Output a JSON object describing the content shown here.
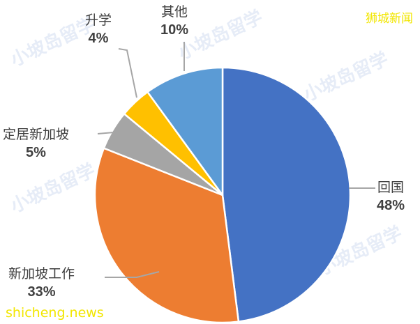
{
  "chart_data": {
    "type": "pie",
    "start_angle": "12 o'clock",
    "direction": "clockwise",
    "slices": [
      {
        "label": "回国",
        "value": 48,
        "pct_label": "48%",
        "color": "#4472C4"
      },
      {
        "label": "新加坡工作",
        "value": 33,
        "pct_label": "33%",
        "color": "#ED7D31"
      },
      {
        "label": "定居新加坡",
        "value": 5,
        "pct_label": "5%",
        "color": "#A5A5A5"
      },
      {
        "label": "升学",
        "value": 4,
        "pct_label": "4%",
        "color": "#FFC000"
      },
      {
        "label": "其他",
        "value": 10,
        "pct_label": "10%",
        "color": "#5B9BD5"
      }
    ]
  },
  "watermarks": {
    "brand": "小坡岛留学",
    "source_top": "狮城新闻",
    "source_bottom": "shicheng.news"
  }
}
